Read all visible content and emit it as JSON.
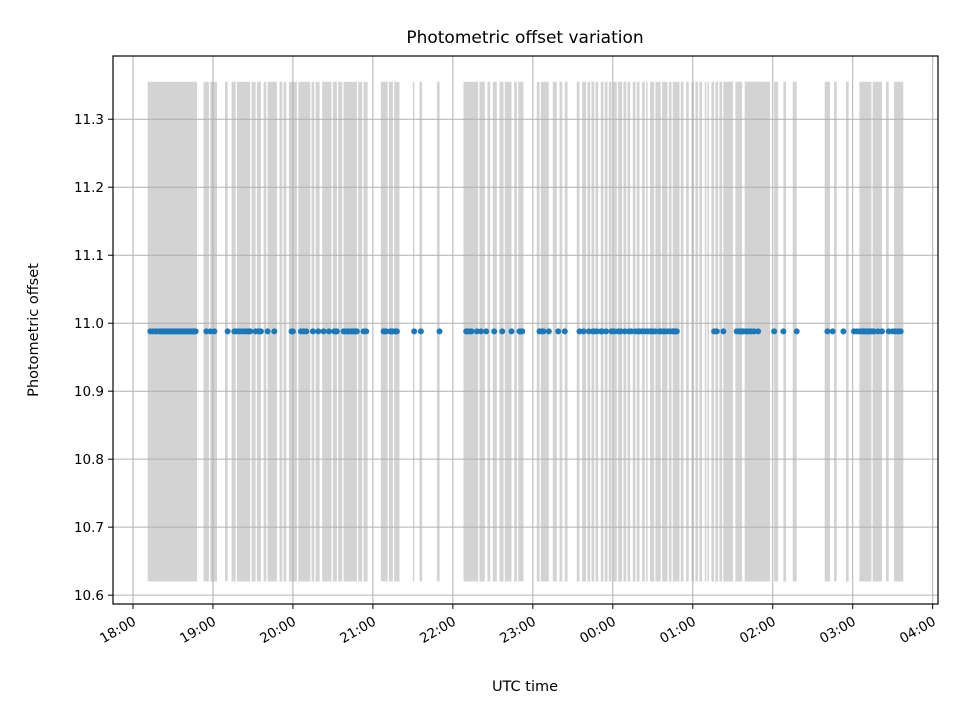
{
  "chart_data": {
    "type": "scatter",
    "title": "Photometric offset variation",
    "xlabel": "UTC time",
    "ylabel": "Photometric offset",
    "x_axis_kind": "time",
    "xlim": [
      "17:45",
      "04:04"
    ],
    "ylim": [
      10.587,
      11.393
    ],
    "grid": true,
    "x_ticks": [
      "18:00",
      "19:00",
      "20:00",
      "21:00",
      "22:00",
      "23:00",
      "00:00",
      "01:00",
      "02:00",
      "03:00",
      "04:00"
    ],
    "y_ticks": [
      "10.6",
      "10.7",
      "10.8",
      "10.9",
      "11.0",
      "11.1",
      "11.2",
      "11.3"
    ],
    "y_tick_values": [
      10.6,
      10.7,
      10.8,
      10.9,
      11.0,
      11.1,
      11.2,
      11.3
    ],
    "band_range": [
      10.62,
      11.355
    ],
    "band_color": "#d3d3d3",
    "point_color": "#1f77b4",
    "observation_bands": [
      [
        "18:11",
        "18:48"
      ],
      [
        "18:53",
        "18:57"
      ],
      [
        "18:58",
        "19:03"
      ],
      [
        "19:09",
        "19:11"
      ],
      [
        "19:14",
        "19:17"
      ],
      [
        "19:18",
        "19:28"
      ],
      [
        "19:29",
        "19:32"
      ],
      [
        "19:33",
        "19:36"
      ],
      [
        "19:38",
        "19:40"
      ],
      [
        "19:41",
        "19:48"
      ],
      [
        "19:50",
        "19:52"
      ],
      [
        "19:53",
        "19:55"
      ],
      [
        "19:57",
        "20:03"
      ],
      [
        "20:04",
        "20:13"
      ],
      [
        "20:14",
        "20:16"
      ],
      [
        "20:17",
        "20:20"
      ],
      [
        "20:22",
        "20:29"
      ],
      [
        "20:30",
        "20:33"
      ],
      [
        "20:34",
        "20:37"
      ],
      [
        "20:38",
        "20:48"
      ],
      [
        "20:49",
        "20:52"
      ],
      [
        "20:53",
        "20:56"
      ],
      [
        "21:06",
        "21:11"
      ],
      [
        "21:12",
        "21:15"
      ],
      [
        "21:16",
        "21:20"
      ],
      [
        "21:30",
        "21:31"
      ],
      [
        "21:35",
        "21:37"
      ],
      [
        "21:48",
        "21:50"
      ],
      [
        "22:08",
        "22:19"
      ],
      [
        "22:20",
        "22:24"
      ],
      [
        "22:26",
        "22:28"
      ],
      [
        "22:30",
        "22:33"
      ],
      [
        "22:35",
        "22:38"
      ],
      [
        "22:39",
        "22:44"
      ],
      [
        "22:46",
        "22:48"
      ],
      [
        "22:49",
        "22:53"
      ],
      [
        "23:03",
        "23:05"
      ],
      [
        "23:06",
        "23:12"
      ],
      [
        "23:15",
        "23:18"
      ],
      [
        "23:20",
        "23:22"
      ],
      [
        "23:24",
        "23:26"
      ],
      [
        "23:33",
        "23:35"
      ],
      [
        "23:37",
        "23:40"
      ],
      [
        "23:41",
        "23:43"
      ],
      [
        "23:44",
        "23:46"
      ],
      [
        "23:47",
        "23:49"
      ],
      [
        "23:51",
        "23:53"
      ],
      [
        "23:54",
        "23:56"
      ],
      [
        "23:57",
        "23:59"
      ],
      [
        "00:00",
        "00:03"
      ],
      [
        "00:04",
        "00:07"
      ],
      [
        "00:08",
        "00:10"
      ],
      [
        "00:11",
        "00:13"
      ],
      [
        "00:15",
        "00:17"
      ],
      [
        "00:18",
        "00:20"
      ],
      [
        "00:22",
        "00:24"
      ],
      [
        "00:25",
        "00:26"
      ],
      [
        "00:28",
        "00:31"
      ],
      [
        "00:32",
        "00:36"
      ],
      [
        "00:37",
        "00:41"
      ],
      [
        "00:42",
        "00:44"
      ],
      [
        "00:45",
        "00:50"
      ],
      [
        "00:51",
        "00:53"
      ],
      [
        "00:55",
        "00:57"
      ],
      [
        "00:59",
        "01:01"
      ],
      [
        "01:02",
        "01:04"
      ],
      [
        "01:05",
        "01:07"
      ],
      [
        "01:09",
        "01:10"
      ],
      [
        "01:11",
        "01:12"
      ],
      [
        "01:14",
        "01:16"
      ],
      [
        "01:17",
        "01:19"
      ],
      [
        "01:20",
        "01:22"
      ],
      [
        "01:23",
        "01:24"
      ],
      [
        "01:26",
        "01:27"
      ],
      [
        "01:29",
        "01:30"
      ],
      [
        "01:32",
        "01:34"
      ],
      [
        "01:35",
        "01:37"
      ],
      [
        "01:39",
        "01:41"
      ],
      [
        "01:42",
        "01:44"
      ],
      [
        "01:46",
        "01:49"
      ],
      [
        "01:50",
        "01:51"
      ],
      [
        "01:53",
        "01:55"
      ],
      [
        "01:56",
        "01:57"
      ]
    ],
    "late_bands": [
      [
        "01:23",
        "01:30"
      ],
      [
        "01:34",
        "01:36"
      ],
      [
        "01:40",
        "01:58"
      ],
      [
        "02:01",
        "02:04"
      ],
      [
        "02:08",
        "02:10"
      ],
      [
        "02:15",
        "02:18"
      ],
      [
        "02:39",
        "02:43"
      ],
      [
        "02:46",
        "02:48"
      ],
      [
        "02:55",
        "02:57"
      ],
      [
        "03:05",
        "03:14"
      ],
      [
        "03:15",
        "03:22"
      ],
      [
        "03:25",
        "03:27"
      ],
      [
        "03:31",
        "03:38"
      ]
    ],
    "points": [
      "18:13",
      "18:15",
      "18:17",
      "18:18",
      "18:20",
      "18:21",
      "18:22",
      "18:23",
      "18:24",
      "18:25",
      "18:26",
      "18:27",
      "18:28",
      "18:29",
      "18:30",
      "18:31",
      "18:32",
      "18:33",
      "18:34",
      "18:35",
      "18:36",
      "18:37",
      "18:38",
      "18:39",
      "18:40",
      "18:41",
      "18:42",
      "18:43",
      "18:44",
      "18:45",
      "18:46",
      "18:47",
      "18:55",
      "18:58",
      "19:01",
      "19:11",
      "19:16",
      "19:18",
      "19:20",
      "19:22",
      "19:24",
      "19:26",
      "19:27",
      "19:28",
      "19:32",
      "19:34",
      "19:35",
      "19:36",
      "19:41",
      "19:46",
      "19:59",
      "20:00",
      "20:06",
      "20:08",
      "20:10",
      "20:15",
      "20:19",
      "20:23",
      "20:27",
      "20:31",
      "20:32",
      "20:33",
      "20:38",
      "20:39",
      "20:41",
      "20:42",
      "20:44",
      "20:45",
      "20:46",
      "20:47",
      "20:48",
      "20:53",
      "20:55",
      "21:08",
      "21:09",
      "21:10",
      "21:13",
      "21:14",
      "21:15",
      "21:17",
      "21:18",
      "21:31",
      "21:36",
      "21:50",
      "22:10",
      "22:11",
      "22:13",
      "22:14",
      "22:18",
      "22:21",
      "22:25",
      "22:31",
      "22:37",
      "22:44",
      "22:50",
      "22:51",
      "22:52",
      "23:05",
      "23:07",
      "23:08",
      "23:12",
      "23:19",
      "23:24",
      "23:35",
      "23:38",
      "23:42",
      "23:45",
      "23:46",
      "23:48",
      "23:51",
      "23:52",
      "23:55",
      "23:59",
      "00:01",
      "00:04",
      "00:06",
      "00:09",
      "00:12",
      "00:14",
      "00:17",
      "00:19",
      "00:20",
      "00:22",
      "00:24",
      "00:26",
      "00:28",
      "00:29",
      "00:30",
      "00:32",
      "00:35",
      "00:36",
      "00:38",
      "00:39",
      "00:41",
      "00:43",
      "00:45",
      "00:46",
      "00:47",
      "00:48",
      "01:16",
      "01:18",
      "01:23",
      "01:33",
      "01:35",
      "01:36",
      "01:37",
      "01:38",
      "01:40",
      "01:41",
      "01:43",
      "01:44",
      "01:46",
      "01:49",
      "02:01",
      "02:08",
      "02:18",
      "02:41",
      "02:45",
      "02:53",
      "03:01",
      "03:03",
      "03:05",
      "03:07",
      "03:08",
      "03:09",
      "03:10",
      "03:11",
      "03:12",
      "03:13",
      "03:14",
      "03:15",
      "03:16",
      "03:19",
      "03:22",
      "03:27",
      "03:30",
      "03:32",
      "03:34",
      "03:36"
    ],
    "point_value": 10.988
  }
}
